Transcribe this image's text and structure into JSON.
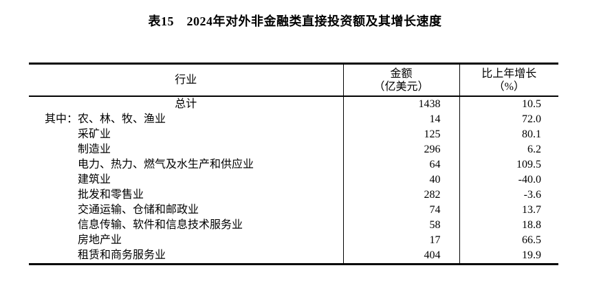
{
  "page": {
    "title": "表15　2024年对外非金融类直接投资额及其增长速度"
  },
  "table": {
    "columns": [
      {
        "label": "行业",
        "sublabel": ""
      },
      {
        "label": "金额",
        "sublabel": "（亿美元）"
      },
      {
        "label": "比上年增长",
        "sublabel": "（%）"
      }
    ],
    "rows": [
      {
        "prefix": "",
        "industry": "总计",
        "amount": "1438",
        "growth": "10.5"
      },
      {
        "prefix": "其中：",
        "industry": "农、林、牧、渔业",
        "amount": "14",
        "growth": "72.0"
      },
      {
        "prefix": "",
        "industry": "采矿业",
        "amount": "125",
        "growth": "80.1"
      },
      {
        "prefix": "",
        "industry": "制造业",
        "amount": "296",
        "growth": "6.2"
      },
      {
        "prefix": "",
        "industry": "电力、热力、燃气及水生产和供应业",
        "amount": "64",
        "growth": "109.5"
      },
      {
        "prefix": "",
        "industry": "建筑业",
        "amount": "40",
        "growth": "-40.0"
      },
      {
        "prefix": "",
        "industry": "批发和零售业",
        "amount": "282",
        "growth": "-3.6"
      },
      {
        "prefix": "",
        "industry": "交通运输、仓储和邮政业",
        "amount": "74",
        "growth": "13.7"
      },
      {
        "prefix": "",
        "industry": "信息传输、软件和信息技术服务业",
        "amount": "58",
        "growth": "18.8"
      },
      {
        "prefix": "",
        "industry": "房地产业",
        "amount": "17",
        "growth": "66.5"
      },
      {
        "prefix": "",
        "industry": "租赁和商务服务业",
        "amount": "404",
        "growth": "19.9"
      }
    ]
  }
}
